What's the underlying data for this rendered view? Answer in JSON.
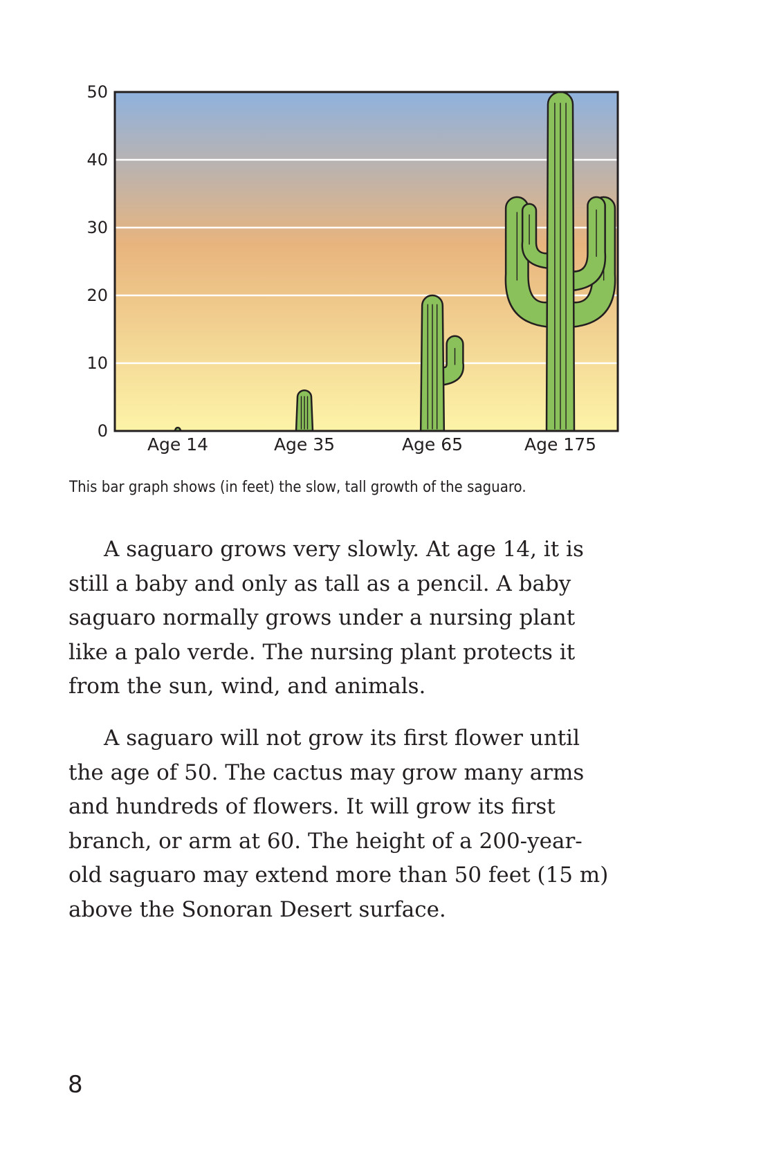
{
  "chart_data": {
    "type": "bar",
    "categories": [
      "Age 14",
      "Age 35",
      "Age 65",
      "Age 175"
    ],
    "values": [
      0.5,
      6,
      20,
      50
    ],
    "ylim": [
      0,
      50
    ],
    "yticks": [
      0,
      10,
      20,
      30,
      40,
      50
    ],
    "grid": true,
    "bar_style": "saguaro cactus illustrations",
    "colors": {
      "sky_top": "#8fb2de",
      "sky_mid": "#e8b47e",
      "sky_bottom": "#fdf4a8",
      "cactus": "#8bc15a",
      "outline": "#231f20",
      "gridline": "#ffffff"
    }
  },
  "caption": "This bar graph shows (in feet) the slow, tall growth of the saguaro.",
  "paragraphs": [
    "A saguaro grows very slowly. At age 14, it is still a baby and only as tall as a pencil. A baby saguaro normally grows under a nursing plant like a palo verde. The nursing plant protects it from the sun, wind, and animals.",
    "A saguaro will not grow its first flower until the age of 50. The cactus may grow many arms and hundreds of flowers. It will grow its first branch, or arm at 60. The height of a 200-year-old saguaro may extend more than 50 feet (15 m) above the Sonoran Desert surface."
  ],
  "page_number": "8"
}
